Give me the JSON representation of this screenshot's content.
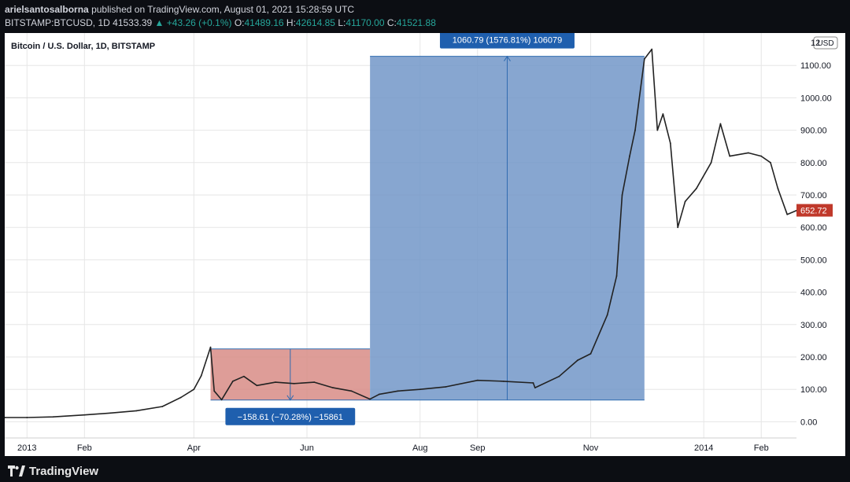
{
  "header": {
    "publisher": "arielsantosalborna",
    "published_text": "published on TradingView.com, August 01, 2021 15:28:59 UTC",
    "symbol": "BITSTAMP:BTCUSD, 1D",
    "last": "41533.39",
    "change": "▲ +43.26 (+0.1%)",
    "o_label": "O:",
    "o_value": "41489.16",
    "h_label": "H:",
    "h_value": "42614.85",
    "l_label": "L:",
    "l_value": "41170.00",
    "c_label": "C:",
    "c_value": "41521.88"
  },
  "footer": {
    "brand": "TradingView"
  },
  "colors": {
    "background": "#0c0e13",
    "grid": "#e6e6e6",
    "price_line": "#222222",
    "drop_fill": "#d88c86",
    "rise_fill": "#7296c8",
    "ruler_line": "#2f6bb0",
    "label_bg": "#1f5fae",
    "last_price_bg": "#c0392b",
    "up_color": "#26a69a"
  },
  "chart_data": {
    "type": "line",
    "title": "Bitcoin / U.S. Dollar, 1D, BITSTAMP",
    "currency_label": "USD",
    "xlabel": "",
    "ylabel": "",
    "ylim": [
      -50,
      1200
    ],
    "grid": true,
    "y_ticks": [
      "0.00",
      "100.00",
      "200.00",
      "300.00",
      "400.00",
      "500.00",
      "600.00",
      "700.00",
      "800.00",
      "900.00",
      "1000.00",
      "1100.00"
    ],
    "y_top_partial": "12",
    "x_ticks": [
      "2013",
      "Feb",
      "Apr",
      "Jun",
      "Aug",
      "Sep",
      "Nov",
      "2014",
      "Feb"
    ],
    "x_tick_dates": [
      "2013-01-01",
      "2013-02-01",
      "2013-04-01",
      "2013-06-01",
      "2013-08-01",
      "2013-09-01",
      "2013-11-01",
      "2014-01-01",
      "2014-02-01"
    ],
    "x_start": "2012-12-20",
    "x_end": "2014-02-20",
    "last_price_label": "652.72",
    "series": [
      {
        "x": [
          "2012-12-20",
          "2013-01-01",
          "2013-01-15",
          "2013-02-01",
          "2013-02-15",
          "2013-03-01",
          "2013-03-15",
          "2013-03-25",
          "2013-04-01",
          "2013-04-05",
          "2013-04-10",
          "2013-04-12",
          "2013-04-16",
          "2013-04-22",
          "2013-04-28",
          "2013-05-05",
          "2013-05-15",
          "2013-05-25",
          "2013-06-05",
          "2013-06-15",
          "2013-06-25",
          "2013-07-05",
          "2013-07-10",
          "2013-07-20",
          "2013-08-01",
          "2013-08-15",
          "2013-09-01",
          "2013-09-15",
          "2013-10-01",
          "2013-10-02",
          "2013-10-15",
          "2013-10-25",
          "2013-11-01",
          "2013-11-10",
          "2013-11-15",
          "2013-11-18",
          "2013-11-22",
          "2013-11-25",
          "2013-11-30",
          "2013-12-04",
          "2013-12-07",
          "2013-12-10",
          "2013-12-14",
          "2013-12-18",
          "2013-12-22",
          "2013-12-28",
          "2014-01-05",
          "2014-01-10",
          "2014-01-15",
          "2014-01-25",
          "2014-02-01",
          "2014-02-06",
          "2014-02-10",
          "2014-02-15",
          "2014-02-20"
        ],
        "values": [
          13,
          13,
          15,
          21,
          27,
          34,
          47,
          75,
          100,
          142,
          230,
          95,
          68,
          125,
          140,
          112,
          122,
          118,
          122,
          105,
          95,
          70,
          85,
          95,
          100,
          108,
          128,
          125,
          120,
          105,
          140,
          190,
          210,
          330,
          450,
          700,
          820,
          900,
          1120,
          1150,
          900,
          950,
          860,
          600,
          680,
          720,
          800,
          920,
          820,
          830,
          820,
          800,
          720,
          640,
          652
        ]
      }
    ],
    "annotations": [
      {
        "type": "range",
        "label": "−158.61 (−70.28%) −15861",
        "x_start": "2013-04-10",
        "x_end": "2013-07-05",
        "y_high": 225,
        "y_low": 67
      },
      {
        "type": "range",
        "label": "1060.79 (1576.81%) 106079",
        "x_start": "2013-07-05",
        "x_end": "2013-11-30",
        "y_high": 1128,
        "y_low": 67
      }
    ]
  }
}
